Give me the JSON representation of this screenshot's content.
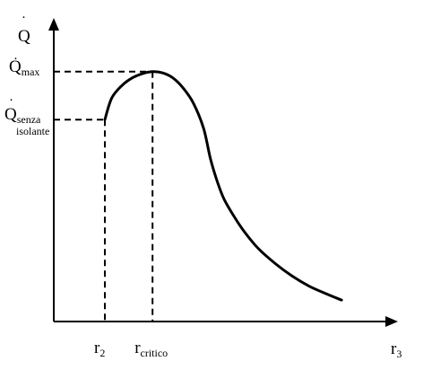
{
  "chart_data": {
    "type": "line",
    "title": "",
    "colors": {
      "curve": "#000000",
      "axes": "#000000",
      "guides": "#000000"
    },
    "x_axis": {
      "label": "r",
      "label_sub": "3",
      "arrow": true
    },
    "y_axis": {
      "label": "Q",
      "label_dot": "·",
      "arrow": true
    },
    "grid": false,
    "legend": "none",
    "xlim": [
      0,
      10
    ],
    "ylim": [
      0,
      10
    ],
    "guide_lines": [
      {
        "name": "q-senza-isolante",
        "y": 8.0,
        "x_end": 1.5,
        "label": "Q",
        "label_dot": "·",
        "label_sub": "senza",
        "label_sub2": "isolante"
      },
      {
        "name": "q-max",
        "y": 9.9,
        "x_end": 2.9,
        "label": "Q",
        "label_dot": "·",
        "label_sub": "max"
      }
    ],
    "x_marks": [
      {
        "name": "r2",
        "x": 1.5,
        "label": "r",
        "label_sub": "2"
      },
      {
        "name": "r-critico",
        "x": 2.9,
        "label": "r",
        "label_sub": "critico"
      }
    ],
    "series": [
      {
        "points": [
          [
            1.5,
            8.0
          ],
          [
            1.7,
            8.85
          ],
          [
            2.0,
            9.35
          ],
          [
            2.3,
            9.65
          ],
          [
            2.6,
            9.82
          ],
          [
            2.9,
            9.9
          ],
          [
            3.2,
            9.85
          ],
          [
            3.5,
            9.65
          ],
          [
            3.8,
            9.25
          ],
          [
            4.1,
            8.65
          ],
          [
            4.4,
            7.65
          ],
          [
            4.6,
            6.45
          ],
          [
            4.8,
            5.55
          ],
          [
            5.0,
            4.85
          ],
          [
            5.3,
            4.15
          ],
          [
            5.6,
            3.55
          ],
          [
            6.0,
            2.9
          ],
          [
            6.5,
            2.3
          ],
          [
            7.0,
            1.8
          ],
          [
            7.5,
            1.4
          ],
          [
            8.0,
            1.1
          ],
          [
            8.45,
            0.85
          ]
        ]
      }
    ]
  }
}
